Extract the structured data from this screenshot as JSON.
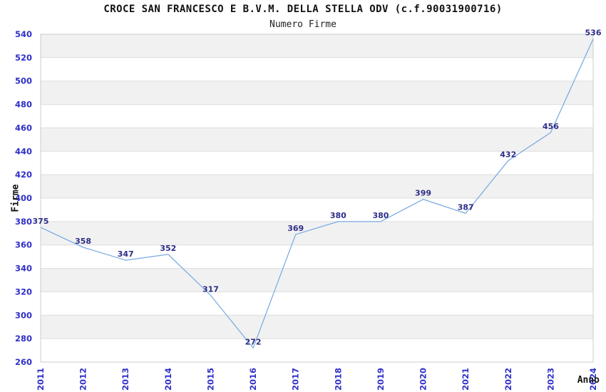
{
  "chart": {
    "title": "CROCE SAN FRANCESCO E B.V.M. DELLA STELLA ODV (c.f.90031900716)",
    "subtitle": "Numero Firme",
    "ylabel": "Firme",
    "xlabel": "Anno"
  },
  "chart_data": {
    "type": "line",
    "title": "CROCE SAN FRANCESCO E B.V.M. DELLA STELLA ODV (c.f.90031900716)",
    "subtitle": "Numero Firme",
    "xlabel": "Anno",
    "ylabel": "Firme",
    "categories": [
      "2011",
      "2012",
      "2013",
      "2014",
      "2015",
      "2016",
      "2017",
      "2018",
      "2019",
      "2020",
      "2021",
      "2022",
      "2023",
      "2024"
    ],
    "values": [
      375,
      358,
      347,
      352,
      317,
      272,
      369,
      380,
      380,
      399,
      387,
      432,
      456,
      536
    ],
    "ylim": [
      260,
      540
    ],
    "ytick_step": 20,
    "yticks": [
      260,
      280,
      300,
      320,
      340,
      360,
      380,
      400,
      420,
      440,
      460,
      480,
      500,
      520,
      540
    ],
    "grid": "horizontal-bands",
    "legend": "none",
    "data_labels": true,
    "colors": {
      "line": "#78ABE2",
      "tick_label": "#3030C8",
      "data_label": "#2D2D87",
      "band_fill": "#F1F1F1",
      "gridline": "#DEDEDE",
      "plot_border": "#CCCCCC",
      "text": "#111111",
      "background": "#FFFFFF"
    }
  }
}
